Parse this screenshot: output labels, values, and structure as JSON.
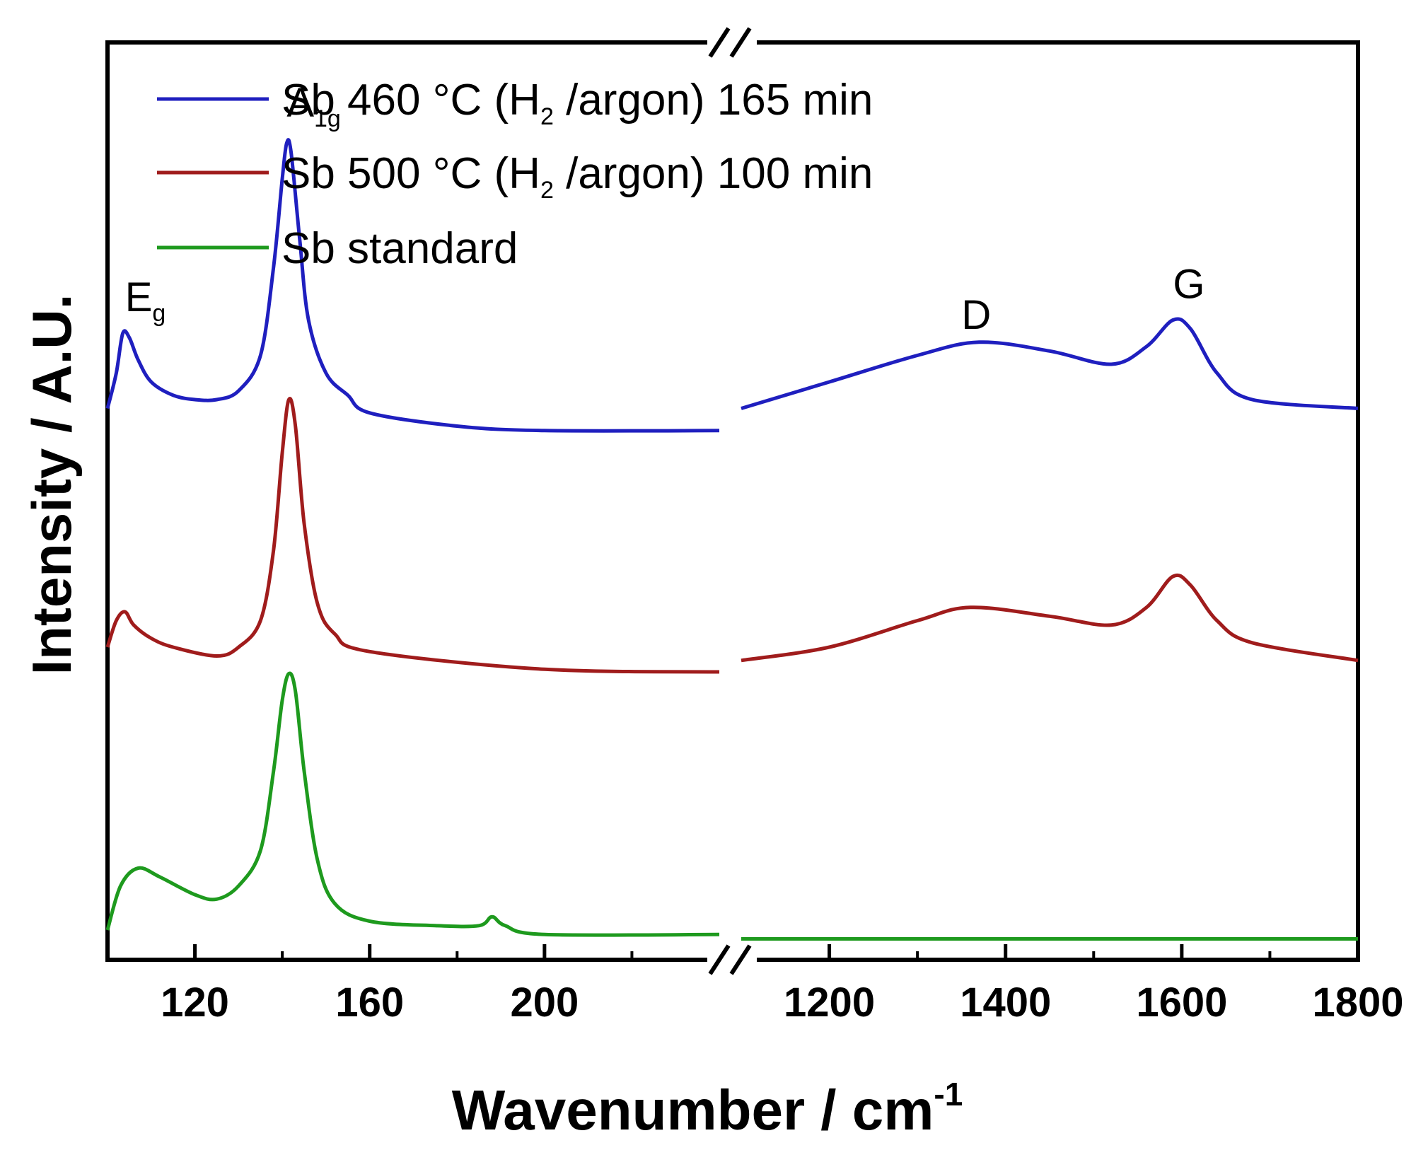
{
  "chart_data": {
    "type": "line",
    "title": "",
    "xlabel": "Wavenumber / cm",
    "xlabel_superscript": "-1",
    "ylabel": "Intensity / A.U.",
    "x_break": true,
    "x_segments": [
      {
        "range": [
          100,
          240
        ],
        "ticks": [
          120,
          160,
          200
        ]
      },
      {
        "range": [
          1100,
          1800
        ],
        "ticks": [
          1200,
          1400,
          1600,
          1800
        ]
      }
    ],
    "tick_labels": [
      "120",
      "160",
      "200",
      "1200",
      "1400",
      "1600",
      "1800"
    ],
    "ylim": [
      0,
      1
    ],
    "legend_position": "top-left",
    "series": [
      {
        "name": "Sb 460 °C (H2 /argon) 165 min",
        "legend_parts": [
          "Sb 460 °C (H",
          "2",
          " /argon) 165 min"
        ],
        "color": "#1f1fbf",
        "offset": 0.61,
        "low": [
          {
            "x": 100,
            "y": 0.0
          },
          {
            "x": 102,
            "y": 0.04
          },
          {
            "x": 103.5,
            "y": 0.085
          },
          {
            "x": 105,
            "y": 0.08
          },
          {
            "x": 107,
            "y": 0.055
          },
          {
            "x": 110,
            "y": 0.03
          },
          {
            "x": 115,
            "y": 0.015
          },
          {
            "x": 120,
            "y": 0.01
          },
          {
            "x": 125,
            "y": 0.01
          },
          {
            "x": 130,
            "y": 0.02
          },
          {
            "x": 135,
            "y": 0.06
          },
          {
            "x": 138,
            "y": 0.16
          },
          {
            "x": 140,
            "y": 0.26
          },
          {
            "x": 141,
            "y": 0.3
          },
          {
            "x": 142,
            "y": 0.29
          },
          {
            "x": 144,
            "y": 0.19
          },
          {
            "x": 146,
            "y": 0.1
          },
          {
            "x": 150,
            "y": 0.04
          },
          {
            "x": 155,
            "y": 0.015
          },
          {
            "x": 160,
            "y": -0.005
          },
          {
            "x": 180,
            "y": -0.02
          },
          {
            "x": 200,
            "y": -0.025
          },
          {
            "x": 240,
            "y": -0.025
          }
        ],
        "high": [
          {
            "x": 1100,
            "y": 0.0
          },
          {
            "x": 1200,
            "y": 0.03
          },
          {
            "x": 1300,
            "y": 0.06
          },
          {
            "x": 1370,
            "y": 0.075
          },
          {
            "x": 1450,
            "y": 0.065
          },
          {
            "x": 1520,
            "y": 0.05
          },
          {
            "x": 1560,
            "y": 0.07
          },
          {
            "x": 1590,
            "y": 0.1
          },
          {
            "x": 1610,
            "y": 0.09
          },
          {
            "x": 1640,
            "y": 0.04
          },
          {
            "x": 1680,
            "y": 0.01
          },
          {
            "x": 1800,
            "y": 0.0
          }
        ]
      },
      {
        "name": "Sb 500 °C (H2 /argon) 100 min",
        "legend_parts": [
          "Sb 500 °C (H",
          "2",
          " /argon) 100 min"
        ],
        "color": "#a01c1c",
        "offset": 0.34,
        "low": [
          {
            "x": 100,
            "y": 0.0
          },
          {
            "x": 102,
            "y": 0.03
          },
          {
            "x": 104,
            "y": 0.04
          },
          {
            "x": 106,
            "y": 0.025
          },
          {
            "x": 110,
            "y": 0.01
          },
          {
            "x": 115,
            "y": 0.0
          },
          {
            "x": 125,
            "y": -0.01
          },
          {
            "x": 130,
            "y": 0.0
          },
          {
            "x": 135,
            "y": 0.03
          },
          {
            "x": 138,
            "y": 0.11
          },
          {
            "x": 140,
            "y": 0.22
          },
          {
            "x": 141.5,
            "y": 0.28
          },
          {
            "x": 143,
            "y": 0.25
          },
          {
            "x": 145,
            "y": 0.14
          },
          {
            "x": 148,
            "y": 0.05
          },
          {
            "x": 152,
            "y": 0.015
          },
          {
            "x": 160,
            "y": -0.005
          },
          {
            "x": 200,
            "y": -0.025
          },
          {
            "x": 240,
            "y": -0.028
          }
        ],
        "high": [
          {
            "x": 1100,
            "y": -0.015
          },
          {
            "x": 1200,
            "y": 0.0
          },
          {
            "x": 1300,
            "y": 0.03
          },
          {
            "x": 1360,
            "y": 0.045
          },
          {
            "x": 1450,
            "y": 0.035
          },
          {
            "x": 1520,
            "y": 0.025
          },
          {
            "x": 1560,
            "y": 0.045
          },
          {
            "x": 1590,
            "y": 0.08
          },
          {
            "x": 1610,
            "y": 0.07
          },
          {
            "x": 1640,
            "y": 0.03
          },
          {
            "x": 1680,
            "y": 0.005
          },
          {
            "x": 1800,
            "y": -0.015
          }
        ]
      },
      {
        "name": "Sb standard",
        "legend_parts": [
          "Sb standard",
          "",
          ""
        ],
        "color": "#1e9a1e",
        "offset": 0.02,
        "low": [
          {
            "x": 100,
            "y": 0.0
          },
          {
            "x": 103,
            "y": 0.05
          },
          {
            "x": 107,
            "y": 0.07
          },
          {
            "x": 112,
            "y": 0.06
          },
          {
            "x": 120,
            "y": 0.04
          },
          {
            "x": 125,
            "y": 0.035
          },
          {
            "x": 130,
            "y": 0.05
          },
          {
            "x": 135,
            "y": 0.09
          },
          {
            "x": 138,
            "y": 0.18
          },
          {
            "x": 140,
            "y": 0.26
          },
          {
            "x": 141.5,
            "y": 0.29
          },
          {
            "x": 143,
            "y": 0.27
          },
          {
            "x": 145,
            "y": 0.18
          },
          {
            "x": 148,
            "y": 0.08
          },
          {
            "x": 152,
            "y": 0.03
          },
          {
            "x": 160,
            "y": 0.01
          },
          {
            "x": 175,
            "y": 0.005
          },
          {
            "x": 185,
            "y": 0.005
          },
          {
            "x": 188,
            "y": 0.015
          },
          {
            "x": 191,
            "y": 0.005
          },
          {
            "x": 200,
            "y": -0.005
          },
          {
            "x": 240,
            "y": -0.005
          }
        ],
        "high": [
          {
            "x": 1100,
            "y": -0.01
          },
          {
            "x": 1800,
            "y": -0.01
          }
        ]
      }
    ],
    "annotations": [
      {
        "label": "E",
        "sub": "g",
        "x": 104,
        "segment": 0,
        "y": 0.72
      },
      {
        "label": "A",
        "sub": "1g",
        "x": 141,
        "segment": 0,
        "y": 0.94
      },
      {
        "label": "D",
        "sub": "",
        "x": 1350,
        "segment": 1,
        "y": 0.7
      },
      {
        "label": "G",
        "sub": "",
        "x": 1590,
        "segment": 1,
        "y": 0.735
      }
    ]
  }
}
